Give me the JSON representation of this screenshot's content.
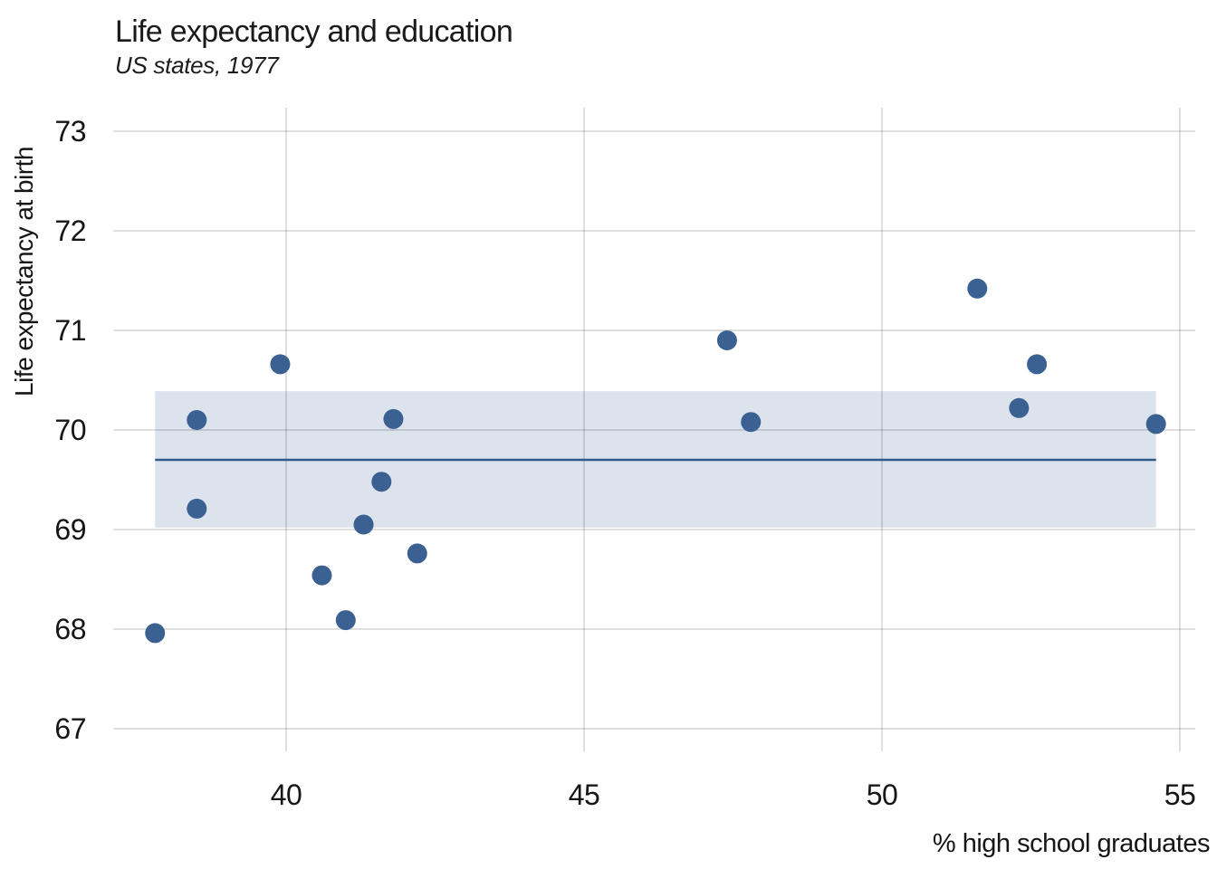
{
  "header": {
    "title": "Life expectancy and education",
    "subtitle": "US states, 1977"
  },
  "chart_data": {
    "type": "scatter",
    "title": "Life expectancy and education",
    "subtitle": "US states, 1977",
    "xlabel": "% high school graduates",
    "ylabel": "Life expectancy at birth",
    "xlim": [
      37.1,
      55.3
    ],
    "ylim": [
      66.8,
      73.25
    ],
    "x_ticks": [
      40,
      45,
      50,
      55
    ],
    "y_ticks": [
      67,
      68,
      69,
      70,
      71,
      72,
      73
    ],
    "grid": true,
    "legend": "none",
    "points": [
      {
        "x": 37.8,
        "y": 67.96
      },
      {
        "x": 38.5,
        "y": 69.21
      },
      {
        "x": 38.5,
        "y": 70.1
      },
      {
        "x": 39.9,
        "y": 70.66
      },
      {
        "x": 40.6,
        "y": 68.54
      },
      {
        "x": 41.0,
        "y": 68.09
      },
      {
        "x": 41.3,
        "y": 69.05
      },
      {
        "x": 41.6,
        "y": 69.48
      },
      {
        "x": 41.8,
        "y": 70.11
      },
      {
        "x": 42.2,
        "y": 68.76
      },
      {
        "x": 47.4,
        "y": 70.9
      },
      {
        "x": 47.8,
        "y": 70.08
      },
      {
        "x": 51.6,
        "y": 71.42
      },
      {
        "x": 52.3,
        "y": 70.22
      },
      {
        "x": 52.6,
        "y": 70.66
      },
      {
        "x": 54.6,
        "y": 70.06
      }
    ],
    "annotations": {
      "mean_line": {
        "y": 69.7,
        "x_start": 37.8,
        "x_end": 54.6
      },
      "band": {
        "y_min": 69.02,
        "y_max": 70.39,
        "x_start": 37.8,
        "x_end": 54.6
      }
    },
    "colors": {
      "point": "#3a6191",
      "mean_line": "#30598c",
      "band": "#dce3ed",
      "grid": "#dedede",
      "text": "#161616"
    }
  }
}
